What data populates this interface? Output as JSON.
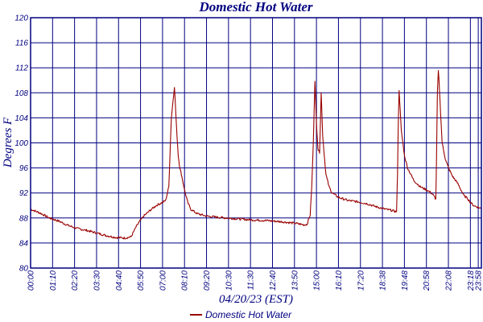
{
  "chart_data": {
    "type": "line",
    "title": "Domestic Hot Water",
    "xlabel": "04/20/23 (EST)",
    "ylabel": "Degrees F",
    "ylim": [
      80,
      120
    ],
    "y_ticks": [
      80,
      84,
      88,
      92,
      96,
      100,
      104,
      108,
      112,
      116,
      120
    ],
    "y_tick_labels": [
      "80",
      "84",
      "88",
      "92",
      "96",
      "100",
      "104",
      "108",
      "112",
      "116",
      "120"
    ],
    "x_unit": "minutes since 00:00",
    "xlim": [
      0,
      1435
    ],
    "x_ticks": [
      0,
      70,
      140,
      210,
      280,
      350,
      420,
      490,
      560,
      630,
      700,
      770,
      840,
      910,
      980,
      1050,
      1120,
      1190,
      1260,
      1330,
      1400,
      1425
    ],
    "x_tick_labels": [
      "00:00",
      "01:10",
      "02:20",
      "03:30",
      "04:40",
      "05:50",
      "07:00",
      "08:10",
      "09:20",
      "10:30",
      "11:30",
      "12:40",
      "13:50",
      "15:00",
      "16:10",
      "17:20",
      "18:38",
      "19:48",
      "20:58",
      "22:08",
      "23:18",
      "23:58"
    ],
    "grid": true,
    "legend_position": "bottom-center",
    "series": [
      {
        "name": "Domestic Hot Water",
        "color": "#990000",
        "x": [
          0,
          30,
          60,
          90,
          120,
          150,
          180,
          210,
          240,
          270,
          300,
          320,
          335,
          345,
          360,
          380,
          400,
          420,
          430,
          440,
          448,
          452,
          458,
          460,
          465,
          470,
          475,
          480,
          490,
          500,
          510,
          530,
          560,
          600,
          650,
          700,
          750,
          800,
          850,
          870,
          880,
          890,
          895,
          900,
          905,
          910,
          915,
          920,
          925,
          930,
          940,
          950,
          960,
          980,
          1010,
          1040,
          1070,
          1100,
          1130,
          1150,
          1165,
          1168,
          1170,
          1173,
          1180,
          1190,
          1200,
          1220,
          1240,
          1260,
          1270,
          1280,
          1285,
          1290,
          1292,
          1295,
          1298,
          1300,
          1305,
          1310,
          1320,
          1330,
          1335,
          1340,
          1345,
          1350,
          1360,
          1370,
          1380,
          1390,
          1400,
          1410,
          1420,
          1435
        ],
        "y": [
          89.4,
          88.8,
          88.0,
          87.5,
          86.8,
          86.3,
          86.0,
          85.6,
          85.2,
          84.9,
          84.8,
          85.0,
          86.5,
          87.3,
          88.3,
          89.2,
          90.0,
          90.5,
          90.8,
          93.0,
          104.0,
          106.0,
          109.0,
          107.0,
          102.0,
          98.0,
          96.0,
          95.0,
          92.5,
          90.5,
          89.4,
          88.7,
          88.3,
          88.1,
          87.9,
          87.7,
          87.6,
          87.4,
          87.1,
          86.9,
          87.0,
          88.5,
          93.0,
          100.0,
          110.0,
          103.0,
          99.0,
          98.5,
          108.0,
          101.0,
          95.0,
          93.0,
          92.0,
          91.3,
          90.8,
          90.6,
          90.3,
          89.8,
          89.4,
          89.2,
          89.0,
          95.0,
          102.0,
          108.5,
          102.0,
          98.0,
          96.0,
          94.0,
          93.0,
          92.5,
          92.2,
          91.8,
          91.4,
          91.0,
          97.0,
          108.0,
          111.5,
          110.0,
          105.0,
          100.0,
          97.5,
          96.0,
          95.5,
          95.0,
          94.5,
          94.2,
          93.5,
          92.5,
          91.5,
          91.2,
          90.5,
          90.0,
          89.8,
          89.5
        ]
      }
    ],
    "legend": [
      "Domestic Hot Water"
    ]
  }
}
